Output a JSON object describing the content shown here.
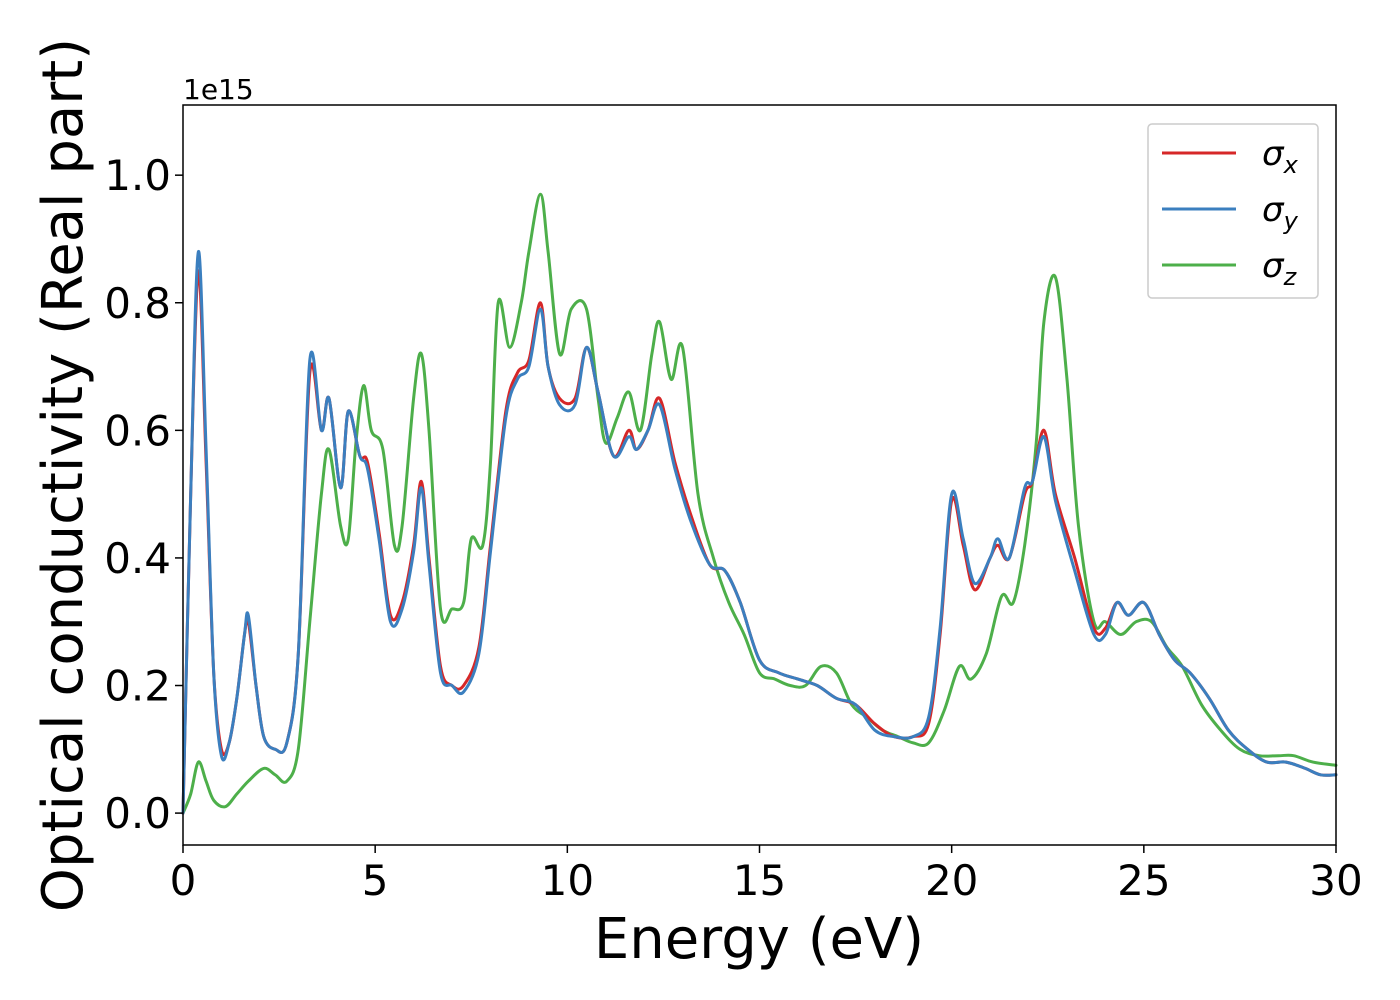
{
  "chart_data": {
    "type": "line",
    "xlabel": "Energy (eV)",
    "ylabel": "Optical conductivity (Real part)",
    "y_offset_label": "1e15",
    "xlim": [
      0,
      30
    ],
    "ylim": [
      -0.05,
      1.11
    ],
    "x_ticks": [
      0,
      5,
      10,
      15,
      20,
      25,
      30
    ],
    "y_ticks": [
      0.0,
      0.2,
      0.4,
      0.6,
      0.8,
      1.0
    ],
    "x_tick_labels": [
      "0",
      "5",
      "10",
      "15",
      "20",
      "25",
      "30"
    ],
    "y_tick_labels": [
      "0.0",
      "0.2",
      "0.4",
      "0.6",
      "0.8",
      "1.0"
    ],
    "grid": false,
    "legend_position": "top-right",
    "series": [
      {
        "name": "σx",
        "symbol": "σ",
        "subscript": "x",
        "color": "#d62728",
        "points": [
          [
            0,
            0.0
          ],
          [
            0.2,
            0.5
          ],
          [
            0.4,
            0.85
          ],
          [
            0.6,
            0.55
          ],
          [
            0.8,
            0.22
          ],
          [
            1.0,
            0.1
          ],
          [
            1.2,
            0.11
          ],
          [
            1.4,
            0.18
          ],
          [
            1.6,
            0.28
          ],
          [
            1.7,
            0.3
          ],
          [
            1.9,
            0.2
          ],
          [
            2.1,
            0.12
          ],
          [
            2.4,
            0.1
          ],
          [
            2.7,
            0.11
          ],
          [
            3.0,
            0.25
          ],
          [
            3.3,
            0.69
          ],
          [
            3.6,
            0.6
          ],
          [
            3.8,
            0.65
          ],
          [
            4.1,
            0.51
          ],
          [
            4.3,
            0.63
          ],
          [
            4.6,
            0.56
          ],
          [
            4.8,
            0.55
          ],
          [
            5.1,
            0.44
          ],
          [
            5.4,
            0.31
          ],
          [
            5.7,
            0.33
          ],
          [
            6.0,
            0.42
          ],
          [
            6.2,
            0.52
          ],
          [
            6.4,
            0.4
          ],
          [
            6.7,
            0.23
          ],
          [
            7.0,
            0.2
          ],
          [
            7.3,
            0.2
          ],
          [
            7.7,
            0.26
          ],
          [
            8.0,
            0.42
          ],
          [
            8.4,
            0.63
          ],
          [
            8.7,
            0.69
          ],
          [
            9.0,
            0.71
          ],
          [
            9.3,
            0.8
          ],
          [
            9.5,
            0.7
          ],
          [
            9.8,
            0.65
          ],
          [
            10.2,
            0.65
          ],
          [
            10.5,
            0.73
          ],
          [
            10.8,
            0.66
          ],
          [
            11.2,
            0.56
          ],
          [
            11.6,
            0.6
          ],
          [
            11.8,
            0.57
          ],
          [
            12.1,
            0.6
          ],
          [
            12.4,
            0.65
          ],
          [
            12.8,
            0.55
          ],
          [
            13.2,
            0.47
          ],
          [
            13.7,
            0.39
          ],
          [
            14.1,
            0.38
          ],
          [
            14.5,
            0.33
          ],
          [
            15.0,
            0.24
          ],
          [
            15.5,
            0.22
          ],
          [
            16.0,
            0.21
          ],
          [
            16.5,
            0.2
          ],
          [
            17.0,
            0.18
          ],
          [
            17.5,
            0.17
          ],
          [
            18.0,
            0.14
          ],
          [
            18.5,
            0.12
          ],
          [
            19.0,
            0.12
          ],
          [
            19.4,
            0.14
          ],
          [
            19.7,
            0.28
          ],
          [
            20.0,
            0.49
          ],
          [
            20.3,
            0.42
          ],
          [
            20.6,
            0.35
          ],
          [
            21.0,
            0.4
          ],
          [
            21.2,
            0.42
          ],
          [
            21.5,
            0.4
          ],
          [
            21.9,
            0.5
          ],
          [
            22.1,
            0.52
          ],
          [
            22.4,
            0.6
          ],
          [
            22.7,
            0.5
          ],
          [
            23.2,
            0.4
          ],
          [
            23.7,
            0.29
          ],
          [
            24.0,
            0.29
          ],
          [
            24.3,
            0.33
          ],
          [
            24.6,
            0.31
          ],
          [
            25.0,
            0.33
          ],
          [
            25.4,
            0.28
          ],
          [
            25.8,
            0.24
          ],
          [
            26.2,
            0.22
          ],
          [
            26.7,
            0.18
          ],
          [
            27.2,
            0.13
          ],
          [
            27.7,
            0.1
          ],
          [
            28.2,
            0.08
          ],
          [
            28.7,
            0.08
          ],
          [
            29.2,
            0.07
          ],
          [
            29.6,
            0.06
          ],
          [
            30.0,
            0.06
          ]
        ]
      },
      {
        "name": "σy",
        "symbol": "σ",
        "subscript": "y",
        "color": "#3b7fbf",
        "points": [
          [
            0,
            0.0
          ],
          [
            0.2,
            0.5
          ],
          [
            0.4,
            0.88
          ],
          [
            0.6,
            0.57
          ],
          [
            0.8,
            0.22
          ],
          [
            1.0,
            0.09
          ],
          [
            1.2,
            0.11
          ],
          [
            1.4,
            0.18
          ],
          [
            1.6,
            0.28
          ],
          [
            1.7,
            0.31
          ],
          [
            1.9,
            0.2
          ],
          [
            2.1,
            0.12
          ],
          [
            2.4,
            0.1
          ],
          [
            2.7,
            0.11
          ],
          [
            3.0,
            0.25
          ],
          [
            3.3,
            0.71
          ],
          [
            3.6,
            0.6
          ],
          [
            3.8,
            0.65
          ],
          [
            4.1,
            0.51
          ],
          [
            4.3,
            0.63
          ],
          [
            4.6,
            0.56
          ],
          [
            4.8,
            0.54
          ],
          [
            5.1,
            0.43
          ],
          [
            5.4,
            0.3
          ],
          [
            5.7,
            0.32
          ],
          [
            6.0,
            0.41
          ],
          [
            6.2,
            0.51
          ],
          [
            6.4,
            0.39
          ],
          [
            6.7,
            0.22
          ],
          [
            7.0,
            0.2
          ],
          [
            7.3,
            0.19
          ],
          [
            7.7,
            0.25
          ],
          [
            8.0,
            0.41
          ],
          [
            8.4,
            0.62
          ],
          [
            8.7,
            0.68
          ],
          [
            9.0,
            0.7
          ],
          [
            9.3,
            0.79
          ],
          [
            9.5,
            0.7
          ],
          [
            9.8,
            0.64
          ],
          [
            10.2,
            0.64
          ],
          [
            10.5,
            0.73
          ],
          [
            10.8,
            0.66
          ],
          [
            11.2,
            0.56
          ],
          [
            11.6,
            0.59
          ],
          [
            11.8,
            0.57
          ],
          [
            12.1,
            0.6
          ],
          [
            12.4,
            0.64
          ],
          [
            12.8,
            0.54
          ],
          [
            13.2,
            0.46
          ],
          [
            13.7,
            0.39
          ],
          [
            14.1,
            0.38
          ],
          [
            14.5,
            0.33
          ],
          [
            15.0,
            0.24
          ],
          [
            15.5,
            0.22
          ],
          [
            16.0,
            0.21
          ],
          [
            16.5,
            0.2
          ],
          [
            17.0,
            0.18
          ],
          [
            17.5,
            0.17
          ],
          [
            18.0,
            0.13
          ],
          [
            18.5,
            0.12
          ],
          [
            19.0,
            0.12
          ],
          [
            19.4,
            0.15
          ],
          [
            19.7,
            0.29
          ],
          [
            20.0,
            0.5
          ],
          [
            20.3,
            0.43
          ],
          [
            20.6,
            0.36
          ],
          [
            21.0,
            0.4
          ],
          [
            21.2,
            0.43
          ],
          [
            21.5,
            0.4
          ],
          [
            21.9,
            0.51
          ],
          [
            22.1,
            0.52
          ],
          [
            22.4,
            0.59
          ],
          [
            22.7,
            0.49
          ],
          [
            23.2,
            0.38
          ],
          [
            23.7,
            0.28
          ],
          [
            24.0,
            0.28
          ],
          [
            24.3,
            0.33
          ],
          [
            24.6,
            0.31
          ],
          [
            25.0,
            0.33
          ],
          [
            25.4,
            0.28
          ],
          [
            25.8,
            0.24
          ],
          [
            26.2,
            0.22
          ],
          [
            26.7,
            0.18
          ],
          [
            27.2,
            0.13
          ],
          [
            27.7,
            0.1
          ],
          [
            28.2,
            0.08
          ],
          [
            28.7,
            0.08
          ],
          [
            29.2,
            0.07
          ],
          [
            29.6,
            0.06
          ],
          [
            30.0,
            0.06
          ]
        ]
      },
      {
        "name": "σz",
        "symbol": "σ",
        "subscript": "z",
        "color": "#4daf4a",
        "points": [
          [
            0,
            0.0
          ],
          [
            0.2,
            0.03
          ],
          [
            0.4,
            0.08
          ],
          [
            0.6,
            0.05
          ],
          [
            0.8,
            0.02
          ],
          [
            1.1,
            0.01
          ],
          [
            1.4,
            0.03
          ],
          [
            1.7,
            0.05
          ],
          [
            2.1,
            0.07
          ],
          [
            2.4,
            0.06
          ],
          [
            2.7,
            0.05
          ],
          [
            3.0,
            0.1
          ],
          [
            3.3,
            0.3
          ],
          [
            3.6,
            0.5
          ],
          [
            3.8,
            0.57
          ],
          [
            4.1,
            0.45
          ],
          [
            4.3,
            0.43
          ],
          [
            4.5,
            0.58
          ],
          [
            4.7,
            0.67
          ],
          [
            4.9,
            0.6
          ],
          [
            5.2,
            0.57
          ],
          [
            5.5,
            0.42
          ],
          [
            5.7,
            0.45
          ],
          [
            6.0,
            0.65
          ],
          [
            6.2,
            0.72
          ],
          [
            6.4,
            0.6
          ],
          [
            6.7,
            0.32
          ],
          [
            7.0,
            0.32
          ],
          [
            7.3,
            0.33
          ],
          [
            7.5,
            0.43
          ],
          [
            7.8,
            0.42
          ],
          [
            8.0,
            0.55
          ],
          [
            8.2,
            0.8
          ],
          [
            8.5,
            0.73
          ],
          [
            8.8,
            0.8
          ],
          [
            9.0,
            0.88
          ],
          [
            9.3,
            0.97
          ],
          [
            9.5,
            0.88
          ],
          [
            9.8,
            0.72
          ],
          [
            10.1,
            0.79
          ],
          [
            10.5,
            0.79
          ],
          [
            10.8,
            0.65
          ],
          [
            11.0,
            0.58
          ],
          [
            11.3,
            0.62
          ],
          [
            11.6,
            0.66
          ],
          [
            11.9,
            0.6
          ],
          [
            12.2,
            0.72
          ],
          [
            12.4,
            0.77
          ],
          [
            12.7,
            0.68
          ],
          [
            13.0,
            0.73
          ],
          [
            13.4,
            0.5
          ],
          [
            13.8,
            0.4
          ],
          [
            14.2,
            0.33
          ],
          [
            14.6,
            0.28
          ],
          [
            15.0,
            0.22
          ],
          [
            15.4,
            0.21
          ],
          [
            15.8,
            0.2
          ],
          [
            16.2,
            0.2
          ],
          [
            16.6,
            0.23
          ],
          [
            17.0,
            0.22
          ],
          [
            17.4,
            0.17
          ],
          [
            17.8,
            0.15
          ],
          [
            18.2,
            0.13
          ],
          [
            18.6,
            0.12
          ],
          [
            19.0,
            0.11
          ],
          [
            19.4,
            0.11
          ],
          [
            19.8,
            0.16
          ],
          [
            20.2,
            0.23
          ],
          [
            20.5,
            0.21
          ],
          [
            20.9,
            0.25
          ],
          [
            21.3,
            0.34
          ],
          [
            21.6,
            0.33
          ],
          [
            21.9,
            0.42
          ],
          [
            22.2,
            0.58
          ],
          [
            22.4,
            0.77
          ],
          [
            22.7,
            0.84
          ],
          [
            23.0,
            0.68
          ],
          [
            23.3,
            0.45
          ],
          [
            23.7,
            0.3
          ],
          [
            24.0,
            0.3
          ],
          [
            24.4,
            0.28
          ],
          [
            24.8,
            0.3
          ],
          [
            25.2,
            0.3
          ],
          [
            25.6,
            0.26
          ],
          [
            26.0,
            0.23
          ],
          [
            26.5,
            0.17
          ],
          [
            27.0,
            0.13
          ],
          [
            27.5,
            0.1
          ],
          [
            28.0,
            0.09
          ],
          [
            28.5,
            0.09
          ],
          [
            28.9,
            0.09
          ],
          [
            29.4,
            0.08
          ],
          [
            30.0,
            0.075
          ]
        ]
      }
    ]
  }
}
